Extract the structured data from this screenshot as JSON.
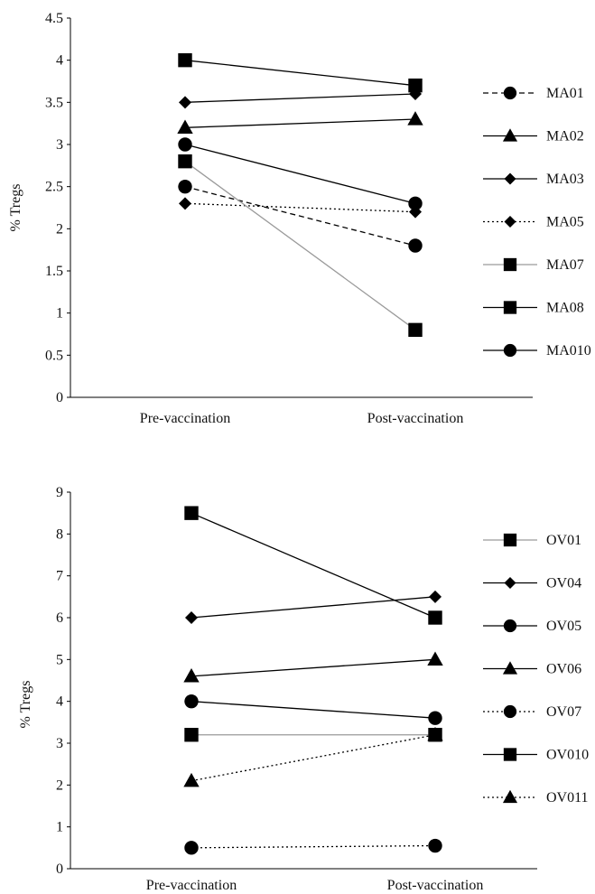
{
  "chart_data": [
    {
      "type": "line",
      "ylabel": "% Tregs",
      "categories": [
        "Pre-vaccination",
        "Post-vaccination"
      ],
      "ylim": [
        0,
        4.5
      ],
      "yticks": [
        "0",
        "0.5",
        "1",
        "1.5",
        "2",
        "2.5",
        "3",
        "3.5",
        "4",
        "4.5"
      ],
      "legend_position": "right",
      "series": [
        {
          "name": "MA01",
          "values": [
            2.5,
            1.8
          ],
          "marker": "circle",
          "line": "dashed",
          "color": "#000000"
        },
        {
          "name": "MA02",
          "values": [
            3.2,
            3.3
          ],
          "marker": "triangle",
          "line": "solid",
          "color": "#000000"
        },
        {
          "name": "MA03",
          "values": [
            3.5,
            3.6
          ],
          "marker": "diamond",
          "line": "solid",
          "color": "#000000"
        },
        {
          "name": "MA05",
          "values": [
            2.3,
            2.2
          ],
          "marker": "diamond",
          "line": "dotted",
          "color": "#000000"
        },
        {
          "name": "MA07",
          "values": [
            2.8,
            0.8
          ],
          "marker": "square",
          "line": "solid",
          "color": "#9a9a9a"
        },
        {
          "name": "MA08",
          "values": [
            4.0,
            3.7
          ],
          "marker": "square",
          "line": "solid",
          "color": "#000000"
        },
        {
          "name": "MA010",
          "values": [
            3.0,
            2.3
          ],
          "marker": "circle",
          "line": "solid",
          "color": "#000000"
        }
      ]
    },
    {
      "type": "line",
      "ylabel": "% Tregs",
      "categories": [
        "Pre-vaccination",
        "Post-vaccination"
      ],
      "ylim": [
        0,
        9
      ],
      "yticks": [
        "0",
        "1",
        "2",
        "3",
        "4",
        "5",
        "6",
        "7",
        "8",
        "9"
      ],
      "legend_position": "right",
      "series": [
        {
          "name": "OV01",
          "values": [
            3.2,
            3.2
          ],
          "marker": "square",
          "line": "solid",
          "color": "#9a9a9a"
        },
        {
          "name": "OV04",
          "values": [
            6.0,
            6.5
          ],
          "marker": "diamond",
          "line": "solid",
          "color": "#000000"
        },
        {
          "name": "OV05",
          "values": [
            4.0,
            3.6
          ],
          "marker": "circle",
          "line": "solid",
          "color": "#000000"
        },
        {
          "name": "OV06",
          "values": [
            4.6,
            5.0
          ],
          "marker": "triangle",
          "line": "solid",
          "color": "#000000"
        },
        {
          "name": "OV07",
          "values": [
            0.5,
            0.55
          ],
          "marker": "circle",
          "line": "dotted",
          "color": "#000000"
        },
        {
          "name": "OV010",
          "values": [
            8.5,
            6.0
          ],
          "marker": "square",
          "line": "solid",
          "color": "#000000"
        },
        {
          "name": "OV011",
          "values": [
            2.1,
            3.2
          ],
          "marker": "triangle",
          "line": "dotted",
          "color": "#000000"
        }
      ]
    }
  ]
}
